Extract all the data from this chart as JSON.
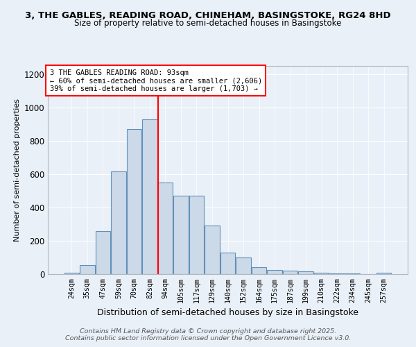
{
  "title_line1": "3, THE GABLES, READING ROAD, CHINEHAM, BASINGSTOKE, RG24 8HD",
  "title_line2": "Size of property relative to semi-detached houses in Basingstoke",
  "xlabel": "Distribution of semi-detached houses by size in Basingstoke",
  "ylabel": "Number of semi-detached properties",
  "categories": [
    "24sqm",
    "35sqm",
    "47sqm",
    "59sqm",
    "70sqm",
    "82sqm",
    "94sqm",
    "105sqm",
    "117sqm",
    "129sqm",
    "140sqm",
    "152sqm",
    "164sqm",
    "175sqm",
    "187sqm",
    "199sqm",
    "210sqm",
    "222sqm",
    "234sqm",
    "245sqm",
    "257sqm"
  ],
  "values": [
    10,
    55,
    260,
    615,
    870,
    930,
    550,
    470,
    470,
    290,
    130,
    100,
    40,
    25,
    20,
    15,
    10,
    5,
    3,
    2,
    10
  ],
  "bar_color": "#ccd9e8",
  "bar_edge_color": "#6090b8",
  "red_line_index": 6,
  "ylim": [
    0,
    1250
  ],
  "yticks": [
    0,
    200,
    400,
    600,
    800,
    1000,
    1200
  ],
  "annotation_title": "3 THE GABLES READING ROAD: 93sqm",
  "annotation_line1": "← 60% of semi-detached houses are smaller (2,606)",
  "annotation_line2": "39% of semi-detached houses are larger (1,703) →",
  "footer_line1": "Contains HM Land Registry data © Crown copyright and database right 2025.",
  "footer_line2": "Contains public sector information licensed under the Open Government Licence v3.0.",
  "bg_color": "#eaf0f8",
  "plot_bg_color": "#eaf0f8"
}
